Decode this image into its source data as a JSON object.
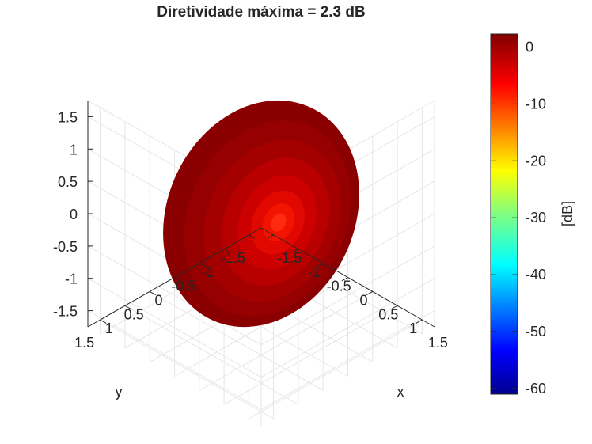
{
  "chart_data": {
    "type": "surface3d",
    "title": "Diretividade máxima = 2.3 dB",
    "xlabel": "x",
    "ylabel": "y",
    "zlabel": "",
    "x_ticks": [
      "-1.5",
      "-1",
      "-0.5",
      "0",
      "0.5",
      "1",
      "1.5"
    ],
    "y_ticks": [
      "-1.5",
      "-1",
      "-0.5",
      "0",
      "0.5",
      "1",
      "1.5"
    ],
    "z_ticks": [
      "-1.5",
      "-1",
      "-0.5",
      "0",
      "0.5",
      "1",
      "1.5"
    ],
    "xlim": [
      -1.75,
      1.75
    ],
    "ylim": [
      -1.75,
      1.75
    ],
    "zlim": [
      -1.75,
      1.75
    ],
    "grid": true,
    "max_directivity_db": 2.3,
    "colormap": "jet",
    "colorbar": {
      "label": "[dB]",
      "ticks": [
        "0",
        "-10",
        "-20",
        "-30",
        "-40",
        "-50",
        "-60"
      ],
      "range": [
        -61,
        2.3
      ]
    },
    "colors": {
      "surface_dark": "#880000",
      "surface_peak": "#ff2a10",
      "grid": "#e6e6e6",
      "axis": "#262626"
    }
  }
}
